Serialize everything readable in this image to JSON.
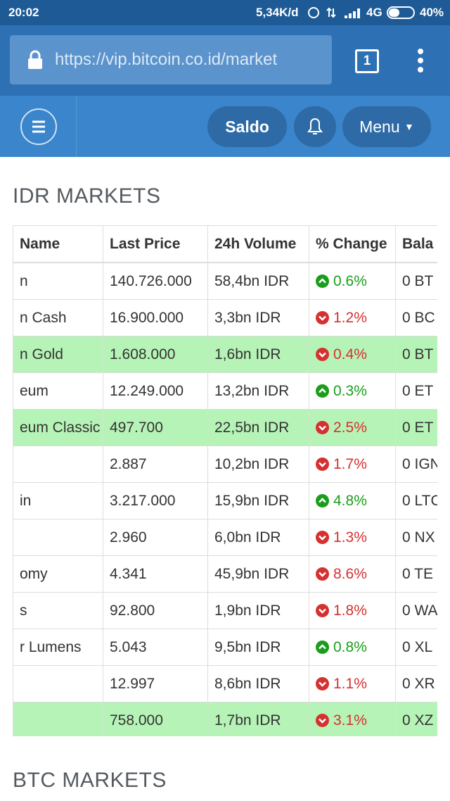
{
  "status_bar": {
    "time": "20:02",
    "speed": "5,34K/d",
    "network": "4G",
    "battery": "40%"
  },
  "browser": {
    "url": "https://vip.bitcoin.co.id/market",
    "tabs": "1"
  },
  "nav": {
    "saldo": "Saldo",
    "menu": "Menu"
  },
  "idr_section": {
    "title": "IDR MARKETS",
    "table": {
      "headers": [
        "Name",
        "Last Price",
        "24h Volume",
        "% Change",
        "Bala"
      ],
      "rows": [
        {
          "name": "n",
          "price": "140.726.000",
          "volume": "58,4bn IDR",
          "change": "0.6%",
          "dir": "up",
          "balance": "0 BT",
          "highlight": false
        },
        {
          "name": "n Cash",
          "price": "16.900.000",
          "volume": "3,3bn IDR",
          "change": "1.2%",
          "dir": "down",
          "balance": "0 BC",
          "highlight": false
        },
        {
          "name": "n Gold",
          "price": "1.608.000",
          "volume": "1,6bn IDR",
          "change": "0.4%",
          "dir": "down",
          "balance": "0 BT",
          "highlight": true
        },
        {
          "name": "eum",
          "price": "12.249.000",
          "volume": "13,2bn IDR",
          "change": "0.3%",
          "dir": "up",
          "balance": "0 ET",
          "highlight": false
        },
        {
          "name": "eum Classic",
          "price": "497.700",
          "volume": "22,5bn IDR",
          "change": "2.5%",
          "dir": "down",
          "balance": "0 ET",
          "highlight": true
        },
        {
          "price": "2.887",
          "volume": "10,2bn IDR",
          "change": "1.7%",
          "dir": "down",
          "balance": "0 IGN",
          "highlight": false
        },
        {
          "name": "in",
          "price": "3.217.000",
          "volume": "15,9bn IDR",
          "change": "4.8%",
          "dir": "up",
          "balance": "0 LTC",
          "highlight": false
        },
        {
          "price": "2.960",
          "volume": "6,0bn IDR",
          "change": "1.3%",
          "dir": "down",
          "balance": "0 NX",
          "highlight": false
        },
        {
          "name": "omy",
          "price": "4.341",
          "volume": "45,9bn IDR",
          "change": "8.6%",
          "dir": "down",
          "balance": "0 TE",
          "highlight": false
        },
        {
          "name": "s",
          "price": "92.800",
          "volume": "1,9bn IDR",
          "change": "1.8%",
          "dir": "down",
          "balance": "0 WA",
          "highlight": false
        },
        {
          "name": "r Lumens",
          "price": "5.043",
          "volume": "9,5bn IDR",
          "change": "0.8%",
          "dir": "up",
          "balance": "0 XL",
          "highlight": false
        },
        {
          "price": "12.997",
          "volume": "8,6bn IDR",
          "change": "1.1%",
          "dir": "down",
          "balance": "0 XR",
          "highlight": false
        },
        {
          "price": "758.000",
          "volume": "1,7bn IDR",
          "change": "3.1%",
          "dir": "down",
          "balance": "0 XZ",
          "highlight": true
        }
      ]
    }
  },
  "btc_section": {
    "title": "BTC MARKETS"
  }
}
